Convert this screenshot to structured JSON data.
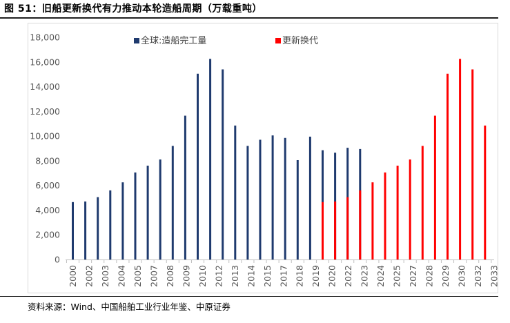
{
  "figure": {
    "title": "图 51：旧船更新换代有力推动本轮造船周期（万载重吨）",
    "source": "资料来源：Wind、中国船舶工业行业年鉴、中原证券"
  },
  "colors": {
    "series_completion": "#1f3a6e",
    "series_replacement": "#ff0000",
    "axis": "#bfbfbf",
    "tick_text": "#595959"
  },
  "chart_data": {
    "type": "bar",
    "title": "旧船更新换代有力推动本轮造船周期（万载重吨）",
    "xlabel": "",
    "ylabel": "",
    "ylim": [
      0,
      18000
    ],
    "yticks": [
      0,
      2000,
      4000,
      6000,
      8000,
      10000,
      12000,
      14000,
      16000,
      18000
    ],
    "ytick_labels": [
      "0",
      "2,000",
      "4,000",
      "6,000",
      "8,000",
      "10,000",
      "12,000",
      "14,000",
      "16,000",
      "18,000"
    ],
    "grid": false,
    "legend_position": "top",
    "categories": [
      "2000",
      "2001",
      "2002",
      "2003",
      "2004",
      "2005",
      "2006",
      "2007",
      "2008",
      "2009",
      "2010",
      "2011",
      "2012",
      "2013",
      "2014",
      "2015",
      "2016",
      "2017",
      "2018",
      "2019",
      "2020",
      "2021",
      "2022",
      "2023",
      "2024",
      "2025",
      "2026",
      "2027",
      "2028",
      "2029",
      "2030",
      "2031",
      "2032",
      "2033"
    ],
    "category_labels": [
      "2000",
      "2002",
      "2003",
      "2004",
      "2005",
      "2007",
      "2008",
      "2009",
      "2010",
      "2012",
      "2013",
      "2014",
      "2015",
      "2017",
      "2018",
      "2019",
      "2020",
      "2022",
      "2023",
      "2024",
      "2025",
      "2027",
      "2028",
      "2029",
      "2030",
      "2032",
      "2033"
    ],
    "series": [
      {
        "name": "全球:造船完工量",
        "values": [
          4650,
          4700,
          5050,
          5600,
          6250,
          7050,
          7600,
          8100,
          9200,
          11650,
          15050,
          16250,
          15400,
          10850,
          9200,
          9700,
          10050,
          9850,
          8050,
          9950,
          8850,
          8650,
          9050,
          8950,
          null,
          null,
          null,
          null,
          null,
          null,
          null,
          null,
          null,
          null
        ]
      },
      {
        "name": "更新换代",
        "values": [
          null,
          null,
          null,
          null,
          null,
          null,
          null,
          null,
          null,
          null,
          null,
          null,
          null,
          null,
          null,
          null,
          null,
          null,
          null,
          null,
          4650,
          4700,
          5050,
          5600,
          6250,
          7050,
          7600,
          8100,
          9200,
          11650,
          15050,
          16250,
          15400,
          10850
        ]
      }
    ]
  }
}
